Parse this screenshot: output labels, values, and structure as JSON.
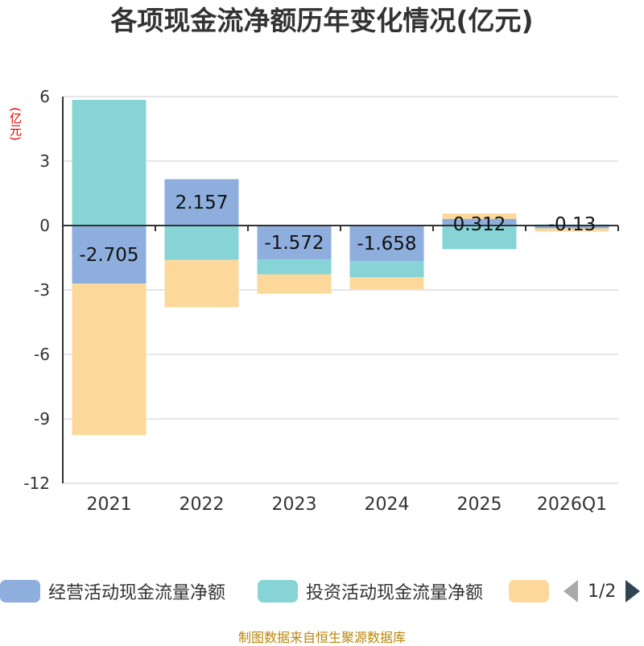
{
  "chart_data": {
    "type": "bar",
    "stacked": true,
    "title": "各项现金流净额历年变化情况(亿元)",
    "ylabel": "(亿元)",
    "xlabel": "",
    "ylim": [
      -12,
      6
    ],
    "yticks": [
      6,
      3,
      0,
      -3,
      -6,
      -9,
      -12
    ],
    "categories": [
      "2021",
      "2022",
      "2023",
      "2024",
      "2025",
      "2026Q1"
    ],
    "series": [
      {
        "name": "经营活动现金流量净额",
        "color": "#8eaedd",
        "values": [
          -2.705,
          2.157,
          -1.572,
          -1.658,
          0.312,
          -0.13
        ],
        "labels": [
          "-2.705",
          "2.157",
          "-1.572",
          "-1.658",
          "0.312",
          "-0.13"
        ]
      },
      {
        "name": "投资活动现金流量净额",
        "color": "#86d4d6",
        "values": [
          5.85,
          -1.6,
          -0.7,
          -0.75,
          -1.1,
          0.05
        ]
      },
      {
        "name": "",
        "color": "#fdd89b",
        "values": [
          -7.05,
          -2.2,
          -0.9,
          -0.55,
          0.25,
          -0.15
        ]
      }
    ]
  },
  "legend": {
    "items": [
      {
        "label": "经营活动现金流量净额",
        "color": "#8eaedd"
      },
      {
        "label": "投资活动现金流量净额",
        "color": "#86d4d6"
      },
      {
        "label": "",
        "color": "#fdd89b"
      }
    ],
    "page": "1/2"
  },
  "source": "制图数据来自恒生聚源数据库"
}
